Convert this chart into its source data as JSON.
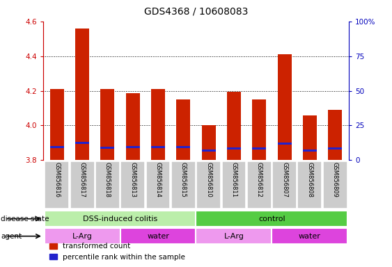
{
  "title": "GDS4368 / 10608083",
  "samples": [
    "GSM856816",
    "GSM856817",
    "GSM856818",
    "GSM856813",
    "GSM856814",
    "GSM856815",
    "GSM856810",
    "GSM856811",
    "GSM856812",
    "GSM856807",
    "GSM856808",
    "GSM856809"
  ],
  "red_values": [
    4.21,
    4.56,
    4.21,
    4.185,
    4.21,
    4.15,
    4.0,
    4.195,
    4.15,
    4.41,
    4.06,
    4.09
  ],
  "blue_values": [
    3.875,
    3.9,
    3.872,
    3.875,
    3.877,
    3.875,
    3.855,
    3.868,
    3.868,
    3.895,
    3.855,
    3.868
  ],
  "bar_base": 3.8,
  "ylim_left": [
    3.8,
    4.6
  ],
  "ylim_right": [
    0,
    100
  ],
  "yticks_left": [
    3.8,
    4.0,
    4.2,
    4.4,
    4.6
  ],
  "yticks_right": [
    0,
    25,
    50,
    75,
    100
  ],
  "ytick_labels_right": [
    "0",
    "25",
    "50",
    "75",
    "100%"
  ],
  "left_tick_color": "#cc0000",
  "right_tick_color": "#0000bb",
  "grid_ticks": [
    4.0,
    4.2,
    4.4
  ],
  "disease_state_groups": [
    {
      "label": "DSS-induced colitis",
      "start": 0,
      "end": 5,
      "color": "#bbeeaa"
    },
    {
      "label": "control",
      "start": 6,
      "end": 11,
      "color": "#55cc44"
    }
  ],
  "agent_groups": [
    {
      "label": "L-Arg",
      "start": 0,
      "end": 2,
      "color": "#ee99ee"
    },
    {
      "label": "water",
      "start": 3,
      "end": 5,
      "color": "#dd44dd"
    },
    {
      "label": "L-Arg",
      "start": 6,
      "end": 8,
      "color": "#ee99ee"
    },
    {
      "label": "water",
      "start": 9,
      "end": 11,
      "color": "#dd44dd"
    }
  ],
  "bar_color_red": "#cc2200",
  "bar_color_blue": "#2222cc",
  "bar_width": 0.55,
  "tick_bg_color": "#cccccc",
  "legend_red": "transformed count",
  "legend_blue": "percentile rank within the sample",
  "xlim": [
    -0.55,
    11.55
  ]
}
